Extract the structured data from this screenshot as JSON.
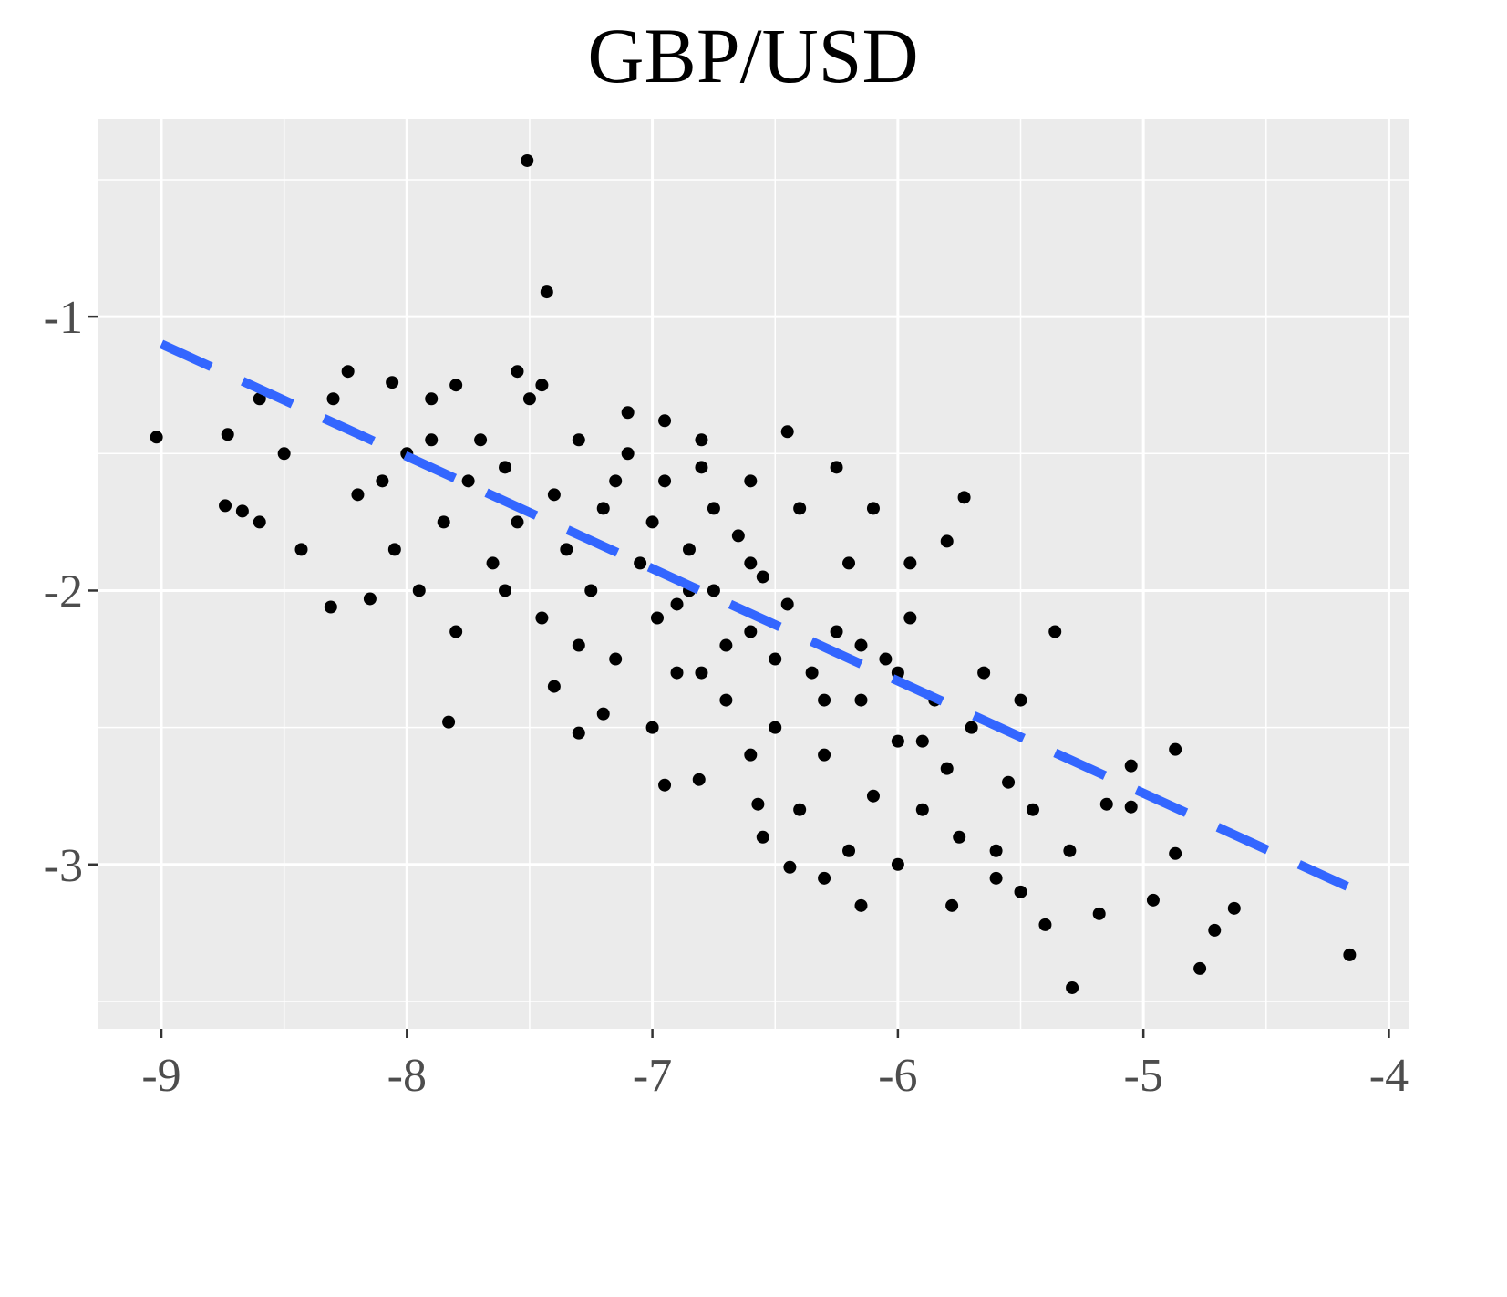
{
  "chart_data": {
    "type": "scatter",
    "title": "GBP/USD",
    "xlim": [
      -9.26,
      -3.92
    ],
    "ylim": [
      -3.6,
      -0.277
    ],
    "xticks": [
      -9,
      -8,
      -7,
      -6,
      -5,
      -4
    ],
    "yticks": [
      -3,
      -2,
      -1
    ],
    "xminorticks": [
      -8.5,
      -7.5,
      -6.5,
      -5.5,
      -4.5
    ],
    "yminorticks": [
      -3.5,
      -2.5,
      -1.5,
      -0.5
    ],
    "grid": true,
    "points": {
      "color": "#000000",
      "x": [
        -7.51,
        -7.43,
        -9.02,
        -4.16,
        -5.29,
        -4.77,
        -4.87,
        -4.87,
        -4.63,
        -5.36,
        -8.31,
        -7.83,
        -8.24,
        -8.06,
        -8.73,
        -8.74,
        -8.67,
        -8.43,
        -5.73,
        -6.44,
        -6.15,
        -5.78,
        -5.4,
        -5.18,
        -4.96,
        -6.95,
        -6.81,
        -7.3,
        -6.57,
        -5.05,
        -5.05,
        -5.15,
        -4.71,
        -7.9,
        -7.8,
        -7.75,
        -7.7,
        -7.65,
        -7.6,
        -7.55,
        -7.5,
        -7.45,
        -7.4,
        -7.35,
        -7.3,
        -7.25,
        -7.2,
        -7.15,
        -7.1,
        -7.05,
        -7.0,
        -6.98,
        -6.95,
        -6.9,
        -6.85,
        -6.8,
        -6.75,
        -6.7,
        -6.65,
        -6.6,
        -6.55,
        -6.5,
        -6.45,
        -6.4,
        -6.35,
        -6.3,
        -6.25,
        -6.2,
        -6.15,
        -6.1,
        -6.05,
        -6.0,
        -5.95,
        -5.9,
        -5.85,
        -5.8,
        -5.75,
        -5.7,
        -5.65,
        -5.6,
        -5.55,
        -5.5,
        -5.45,
        -8.1,
        -8.05,
        -8.0,
        -7.95,
        -7.85,
        -7.8,
        -7.9,
        -8.2,
        -8.3,
        -8.5,
        -8.6,
        -8.6,
        -8.15,
        -7.6,
        -7.4,
        -7.2,
        -7.0,
        -6.8,
        -6.6,
        -6.4,
        -6.2,
        -6.0,
        -7.1,
        -6.95,
        -6.8,
        -6.6,
        -6.45,
        -6.25,
        -6.1,
        -5.95,
        -5.8,
        -6.55,
        -6.3,
        -6.0,
        -5.6,
        -5.3,
        -5.5,
        -7.3,
        -6.9,
        -6.7,
        -6.5,
        -6.3,
        -6.15,
        -5.9,
        -7.55,
        -7.45,
        -7.15,
        -6.85,
        -6.75,
        -6.6
      ],
      "y": [
        -0.43,
        -0.91,
        -1.44,
        -3.33,
        -3.45,
        -3.38,
        -2.58,
        -2.96,
        -3.16,
        -2.15,
        -2.06,
        -2.48,
        -1.2,
        -1.24,
        -1.43,
        -1.69,
        -1.71,
        -1.85,
        -1.66,
        -3.01,
        -3.15,
        -3.15,
        -3.22,
        -3.18,
        -3.13,
        -2.71,
        -2.69,
        -2.52,
        -2.78,
        -2.64,
        -2.79,
        -2.78,
        -3.24,
        -1.3,
        -1.25,
        -1.6,
        -1.45,
        -1.9,
        -1.55,
        -1.75,
        -1.3,
        -2.1,
        -1.65,
        -1.85,
        -1.45,
        -2.0,
        -1.7,
        -2.25,
        -1.5,
        -1.9,
        -1.75,
        -2.1,
        -1.6,
        -2.3,
        -1.85,
        -1.55,
        -2.0,
        -2.4,
        -1.8,
        -2.15,
        -1.95,
        -2.5,
        -2.05,
        -1.7,
        -2.3,
        -2.6,
        -2.15,
        -1.9,
        -2.4,
        -2.75,
        -2.25,
        -2.55,
        -2.1,
        -2.8,
        -2.4,
        -2.65,
        -2.9,
        -2.5,
        -2.3,
        -2.95,
        -2.7,
        -2.4,
        -2.8,
        -1.6,
        -1.85,
        -1.5,
        -2.0,
        -1.75,
        -2.15,
        -1.45,
        -1.65,
        -1.3,
        -1.5,
        -1.3,
        -1.75,
        -2.03,
        -2.0,
        -2.35,
        -2.45,
        -2.5,
        -2.3,
        -2.6,
        -2.8,
        -2.95,
        -2.3,
        -1.35,
        -1.38,
        -1.45,
        -1.6,
        -1.42,
        -1.55,
        -1.7,
        -1.9,
        -1.82,
        -2.9,
        -3.05,
        -3.0,
        -3.05,
        -2.95,
        -3.1,
        -2.2,
        -2.05,
        -2.2,
        -2.25,
        -2.4,
        -2.2,
        -2.55,
        -1.2,
        -1.25,
        -1.6,
        -2.0,
        -1.7,
        -1.9
      ]
    },
    "fit_line": {
      "color": "#3366ff",
      "dashed": true,
      "x": [
        -9,
        -4.17
      ],
      "y": [
        -1.1,
        -3.08
      ]
    }
  }
}
